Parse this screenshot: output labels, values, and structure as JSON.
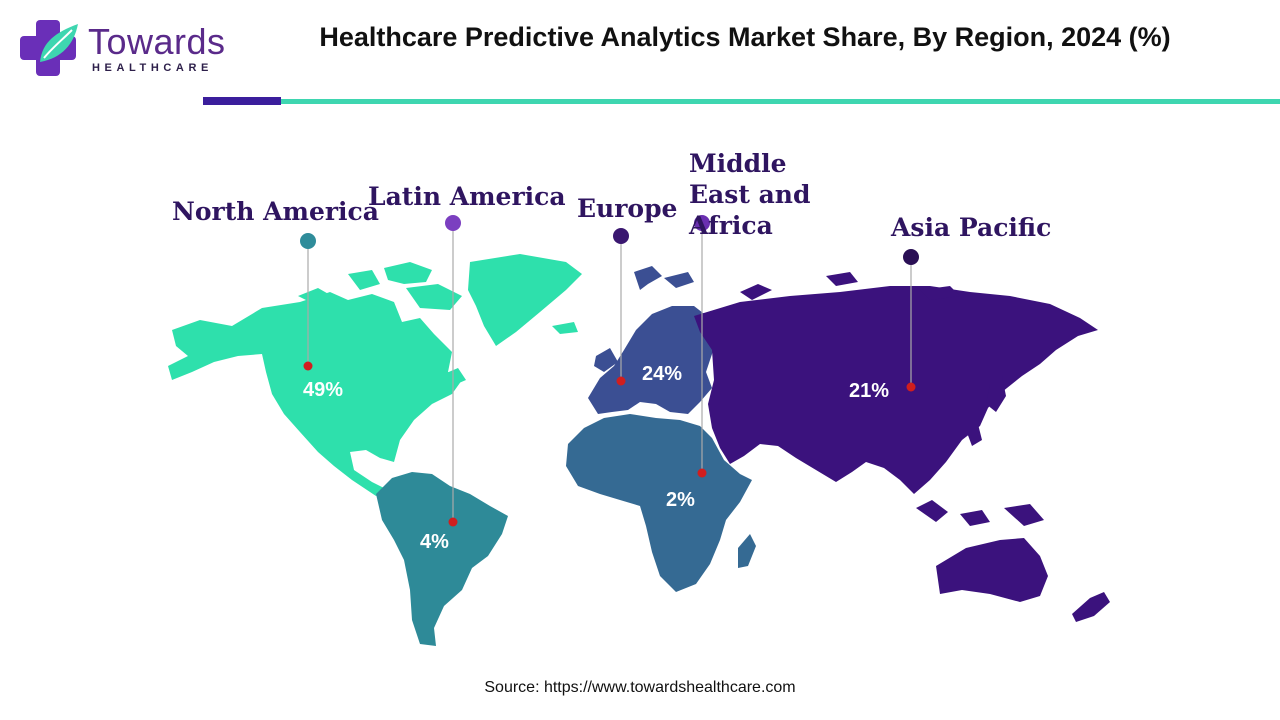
{
  "brand": {
    "name": "Towards",
    "tagline": "HEALTHCARE",
    "colors": {
      "primary": "#5a2a8a",
      "teal": "#3ed6b0",
      "dark": "#3b1e9c"
    }
  },
  "title": "Healthcare Predictive Analytics Market Share, By Region, 2024 (%)",
  "source": "Source: https://www.towardshealthcare.com",
  "chart_data": {
    "type": "map",
    "title": "Healthcare Predictive Analytics Market Share, By Region, 2024 (%)",
    "unit": "%",
    "regions": [
      {
        "name": "North America",
        "value": 49,
        "label": "49%",
        "color": "#2ee0ac",
        "marker_color": "#2f8c9a"
      },
      {
        "name": "Latin America",
        "value": 4,
        "label": "4%",
        "color": "#2e8a98",
        "marker_color": "#7b3fc0"
      },
      {
        "name": "Europe",
        "value": 24,
        "label": "24%",
        "color": "#3b4f93",
        "marker_color": "#3a1770"
      },
      {
        "name": "Middle East and Africa",
        "value": 2,
        "label": "2%",
        "color": "#356a93",
        "marker_color": "#6a2fb0"
      },
      {
        "name": "Asia Pacific",
        "value": 21,
        "label": "21%",
        "color": "#3b127d",
        "marker_color": "#2a0f55"
      }
    ]
  }
}
